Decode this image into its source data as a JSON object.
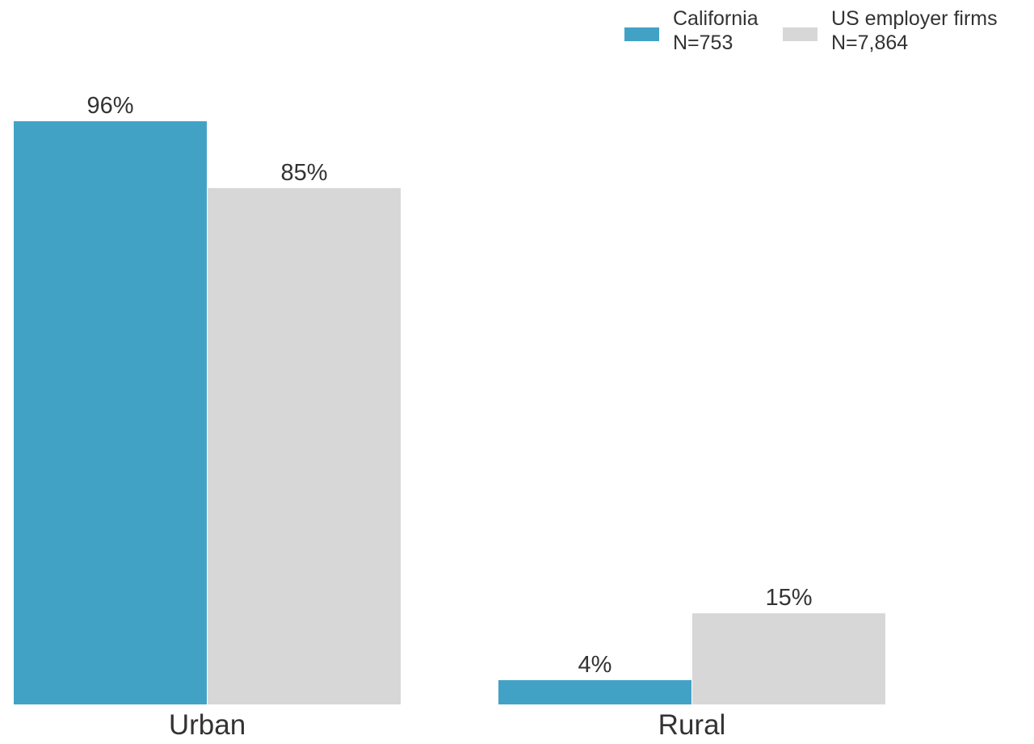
{
  "chart_data": {
    "type": "bar",
    "categories": [
      "Urban",
      "Rural"
    ],
    "series": [
      {
        "name": "California",
        "n_label": "N=753",
        "color": "#42a2c6",
        "values": [
          96,
          4
        ],
        "value_labels": [
          "96%",
          "4%"
        ]
      },
      {
        "name": "US employer firms",
        "n_label": "N=7,864",
        "color": "#d7d7d7",
        "values": [
          85,
          15
        ],
        "value_labels": [
          "85%",
          "15%"
        ]
      }
    ],
    "ylim": [
      0,
      100
    ],
    "grid": false,
    "legend": "top-right",
    "title": "",
    "xlabel": "",
    "ylabel": ""
  }
}
